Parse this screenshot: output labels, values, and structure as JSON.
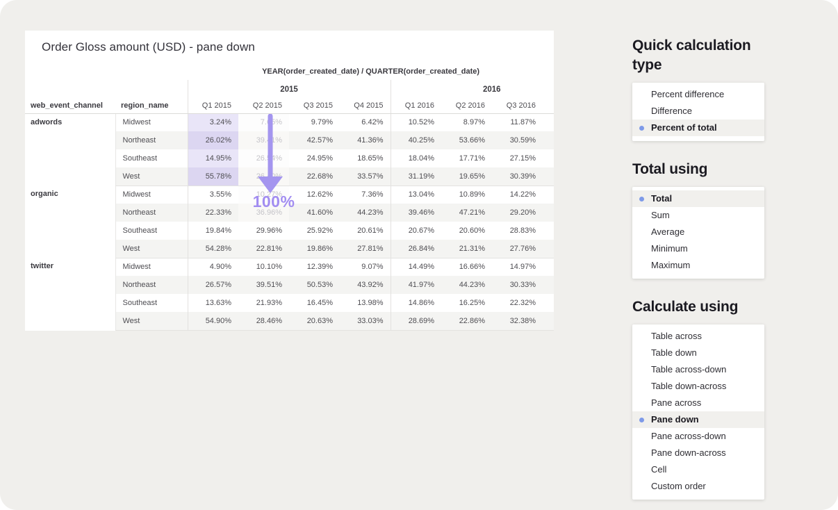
{
  "viz": {
    "title": "Order Gloss amount (USD) - pane down",
    "col_field_label": "YEAR(order_created_date) / QUARTER(order_created_date)",
    "row_headers": [
      "web_event_channel",
      "region_name"
    ],
    "year_groups": [
      {
        "label": "2015",
        "quarters": [
          "Q1 2015",
          "Q2 2015",
          "Q3 2015",
          "Q4 2015"
        ]
      },
      {
        "label": "2016",
        "quarters": [
          "Q1 2016",
          "Q2 2016",
          "Q3 2016"
        ]
      }
    ],
    "groups": [
      {
        "channel": "adwords",
        "rows": [
          {
            "region": "Midwest",
            "values": [
              "3.24%",
              "7.65%",
              "9.79%",
              "6.42%",
              "10.52%",
              "8.97%",
              "11.87%"
            ]
          },
          {
            "region": "Northeast",
            "values": [
              "26.02%",
              "39.41%",
              "42.57%",
              "41.36%",
              "40.25%",
              "53.66%",
              "30.59%"
            ]
          },
          {
            "region": "Southeast",
            "values": [
              "14.95%",
              "26.54%",
              "24.95%",
              "18.65%",
              "18.04%",
              "17.71%",
              "27.15%"
            ]
          },
          {
            "region": "West",
            "values": [
              "55.78%",
              "26.40%",
              "22.68%",
              "33.57%",
              "31.19%",
              "19.65%",
              "30.39%"
            ]
          }
        ]
      },
      {
        "channel": "organic",
        "rows": [
          {
            "region": "Midwest",
            "values": [
              "3.55%",
              "10.27%",
              "12.62%",
              "7.36%",
              "13.04%",
              "10.89%",
              "14.22%"
            ]
          },
          {
            "region": "Northeast",
            "values": [
              "22.33%",
              "36.96%",
              "41.60%",
              "44.23%",
              "39.46%",
              "47.21%",
              "29.20%"
            ]
          },
          {
            "region": "Southeast",
            "values": [
              "19.84%",
              "29.96%",
              "25.92%",
              "20.61%",
              "20.67%",
              "20.60%",
              "28.83%"
            ]
          },
          {
            "region": "West",
            "values": [
              "54.28%",
              "22.81%",
              "19.86%",
              "27.81%",
              "26.84%",
              "21.31%",
              "27.76%"
            ]
          }
        ]
      },
      {
        "channel": "twitter",
        "rows": [
          {
            "region": "Midwest",
            "values": [
              "4.90%",
              "10.10%",
              "12.39%",
              "9.07%",
              "14.49%",
              "16.66%",
              "14.97%"
            ]
          },
          {
            "region": "Northeast",
            "values": [
              "26.57%",
              "39.51%",
              "50.53%",
              "43.92%",
              "41.97%",
              "44.23%",
              "30.33%"
            ]
          },
          {
            "region": "Southeast",
            "values": [
              "13.63%",
              "21.93%",
              "16.45%",
              "13.98%",
              "14.86%",
              "16.25%",
              "22.32%"
            ]
          },
          {
            "region": "West",
            "values": [
              "54.90%",
              "28.46%",
              "20.63%",
              "33.03%",
              "28.69%",
              "22.86%",
              "32.38%"
            ]
          }
        ]
      }
    ],
    "annotation": {
      "label": "100%",
      "color": "#a28df1",
      "arrow_color": "#a495ef"
    },
    "effects": {
      "pane_highlight": {
        "group": 0,
        "quarter_col": 0,
        "light": "#e9e5f8",
        "dark": "#dcd6f1"
      },
      "dimmed_cells": {
        "quarter_col": 1,
        "cells": [
          [
            0,
            0
          ],
          [
            0,
            1
          ],
          [
            0,
            2
          ],
          [
            0,
            3
          ],
          [
            1,
            0
          ],
          [
            1,
            1
          ]
        ]
      }
    }
  },
  "panels": [
    {
      "title": "Quick calculation type",
      "items": [
        "Percent difference",
        "Difference",
        "Percent of total"
      ],
      "selected_index": 2
    },
    {
      "title": "Total using",
      "items": [
        "Total",
        "Sum",
        "Average",
        "Minimum",
        "Maximum"
      ],
      "selected_index": 0
    },
    {
      "title": "Calculate using",
      "items": [
        "Table across",
        "Table down",
        "Table across-down",
        "Table down-across",
        "Pane across",
        "Pane down",
        "Pane across-down",
        "Pane down-across",
        "Cell",
        "Custom order"
      ],
      "selected_index": 5
    }
  ],
  "colors": {
    "page_bg": "#f0efec",
    "selected_bullet": "#7e9ae8",
    "selected_row_bg": "#f1f0ed"
  }
}
